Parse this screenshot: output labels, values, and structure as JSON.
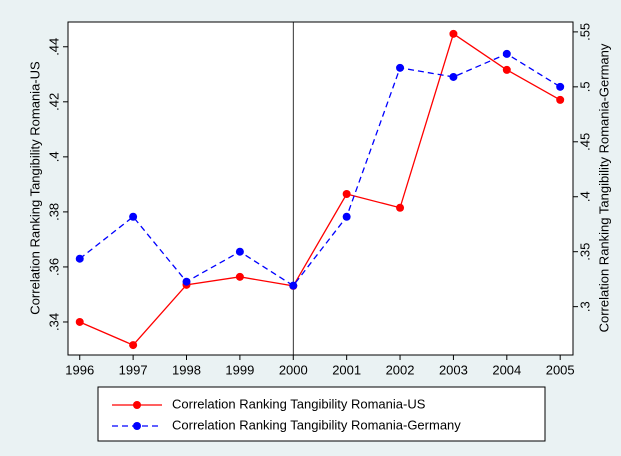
{
  "chart_data": {
    "type": "line",
    "x": [
      1996,
      1997,
      1998,
      1999,
      2000,
      2001,
      2002,
      2003,
      2004,
      2005
    ],
    "xlim": [
      1995.78,
      2005.24
    ],
    "xticks": [
      1996,
      1997,
      1998,
      1999,
      2000,
      2001,
      2002,
      2003,
      2004,
      2005
    ],
    "ylabel": "Correlation Ranking Tangibility Romania-US",
    "y2label": "Correlation Ranking Tangibility Romania-Germany",
    "ylim": [
      0.328,
      0.449
    ],
    "yticks": [
      {
        "value": 0.34,
        "label": ".34"
      },
      {
        "value": 0.36,
        "label": ".36"
      },
      {
        "value": 0.38,
        "label": ".38"
      },
      {
        "value": 0.4,
        "label": ".4"
      },
      {
        "value": 0.42,
        "label": ".42"
      },
      {
        "value": 0.44,
        "label": ".44"
      }
    ],
    "y2lim": [
      0.256,
      0.559
    ],
    "y2ticks": [
      {
        "value": 0.3,
        "label": ".3"
      },
      {
        "value": 0.35,
        "label": ".35"
      },
      {
        "value": 0.4,
        "label": ".4"
      },
      {
        "value": 0.45,
        "label": ".45"
      },
      {
        "value": 0.5,
        "label": ".5"
      },
      {
        "value": 0.55,
        "label": ".55"
      }
    ],
    "xline": 2000,
    "series": [
      {
        "name": "Correlation Ranking Tangibility Romania-US",
        "color": "#ff0000",
        "dash": false,
        "values": [
          0.34,
          0.3316,
          0.3535,
          0.3564,
          0.3531,
          0.3865,
          0.3815,
          0.4447,
          0.4316,
          0.4207
        ]
      },
      {
        "name": "Correlation Ranking Tangibility Romania-Germany",
        "color": "#0000ff",
        "dash": true,
        "axis": "y2",
        "values": [
          0.3436,
          0.3818,
          0.3227,
          0.35,
          0.3191,
          0.3818,
          0.5173,
          0.509,
          0.53,
          0.5
        ]
      }
    ]
  }
}
